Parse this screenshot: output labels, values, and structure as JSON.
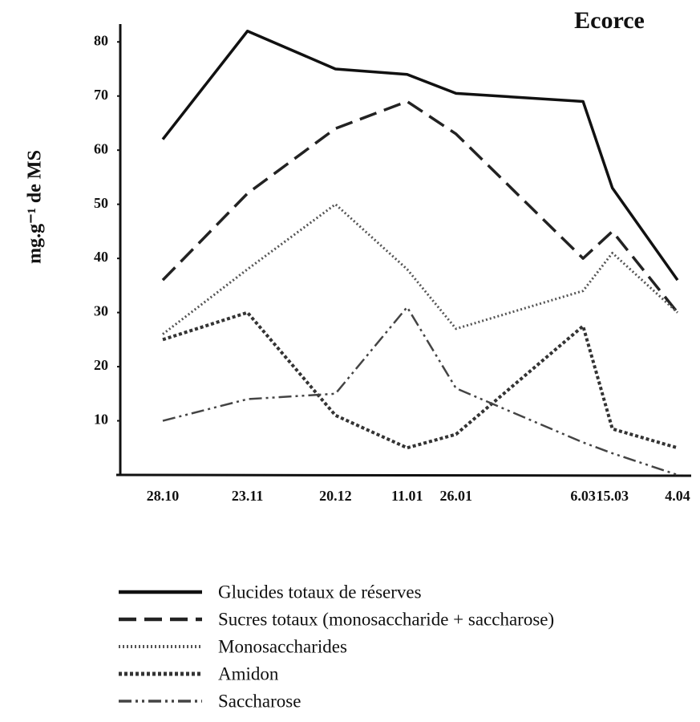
{
  "chart_data": {
    "type": "line",
    "title": "Ecorce",
    "y_label": "mg.g⁻¹ de MS",
    "categories": [
      "28.10",
      "23.11",
      "20.12",
      "11.01",
      "26.01",
      "6.03",
      "15.03",
      "4.04"
    ],
    "ylim": [
      0,
      83
    ],
    "yticks": [
      10,
      20,
      30,
      40,
      50,
      60,
      70,
      80
    ],
    "series": [
      {
        "name": "Glucides totaux de réserves",
        "color": "#111111",
        "dash": "solid",
        "values": [
          62,
          82,
          75,
          74,
          70.5,
          69,
          53,
          36
        ]
      },
      {
        "name": "Sucres totaux (monosaccharide + saccharose)",
        "color": "#222222",
        "dash": "dashed",
        "values": [
          36,
          52,
          64,
          69,
          63,
          40,
          45,
          30
        ]
      },
      {
        "name": "Monosaccharides",
        "color": "#555555",
        "dash": "dotted",
        "values": [
          26,
          38,
          50,
          38,
          27,
          34,
          41,
          30
        ]
      },
      {
        "name": "Amidon",
        "color": "#333333",
        "dash": "dense-dotted",
        "values": [
          25,
          30,
          11,
          5,
          7.5,
          27.5,
          8.5,
          5
        ]
      },
      {
        "name": "Saccharose",
        "color": "#444444",
        "dash": "dash-dot-dot",
        "values": [
          10,
          14,
          15,
          31,
          16,
          6,
          4,
          0
        ]
      }
    ]
  }
}
